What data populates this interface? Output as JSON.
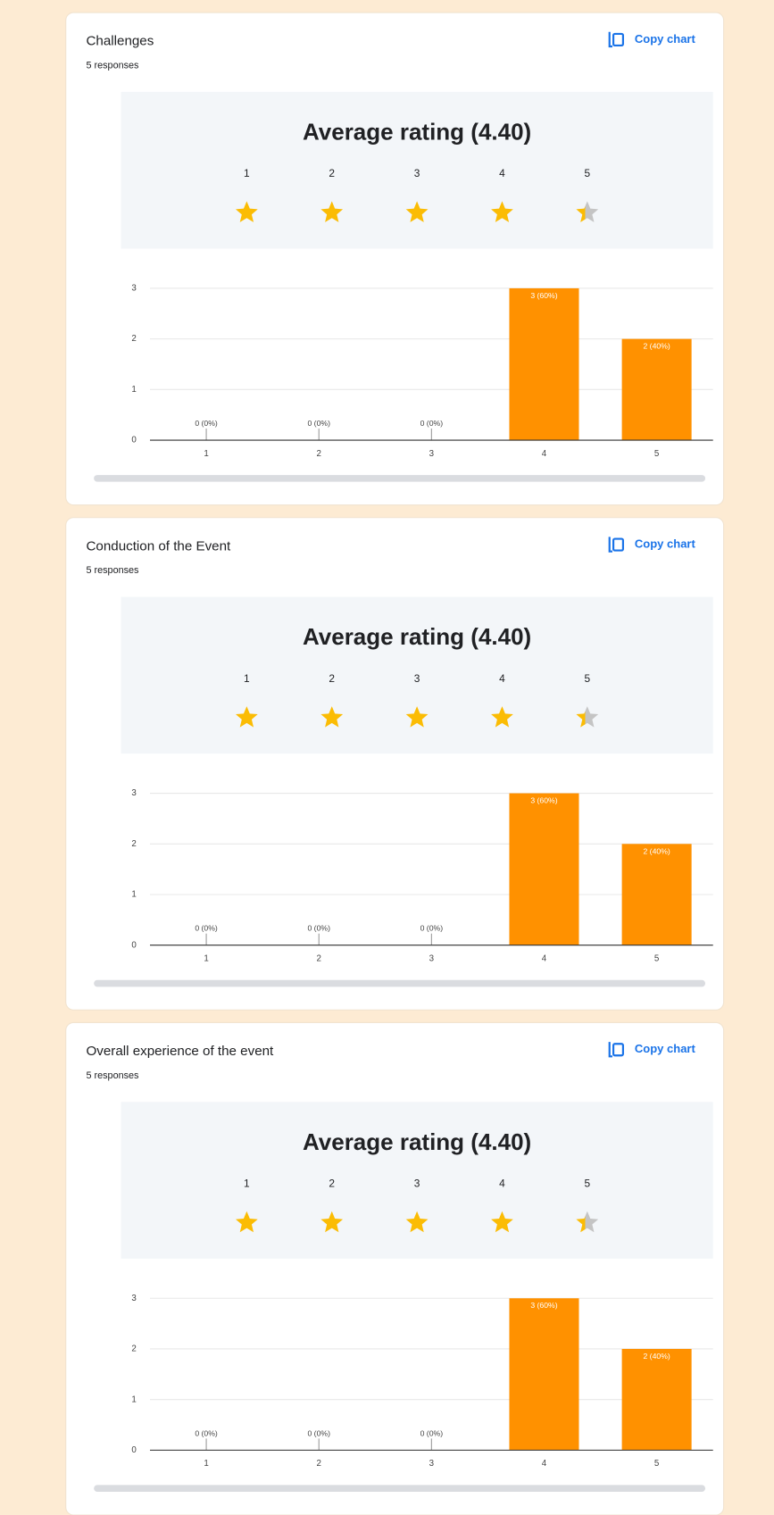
{
  "chart_data": [
    {
      "type": "bar",
      "title": "Challenges",
      "subtitle": "5 responses",
      "button": "Copy chart",
      "rating_title": "Average rating (4.40)",
      "average": 4.4,
      "categories": [
        "1",
        "2",
        "3",
        "4",
        "5"
      ],
      "values": [
        0,
        0,
        0,
        3,
        2
      ],
      "value_labels": [
        "0 (0%)",
        "0 (0%)",
        "0 (0%)",
        "3 (60%)",
        "2 (40%)"
      ],
      "color": "#ff9100",
      "ylim": [
        0,
        3
      ],
      "yticks": [
        0,
        1,
        2,
        3
      ],
      "grid": true
    },
    {
      "type": "bar",
      "title": "Conduction of the Event",
      "subtitle": "5 responses",
      "button": "Copy chart",
      "rating_title": "Average rating (4.40)",
      "average": 4.4,
      "categories": [
        "1",
        "2",
        "3",
        "4",
        "5"
      ],
      "values": [
        0,
        0,
        0,
        3,
        2
      ],
      "value_labels": [
        "0 (0%)",
        "0 (0%)",
        "0 (0%)",
        "3 (60%)",
        "2 (40%)"
      ],
      "color": "#ff9100",
      "ylim": [
        0,
        3
      ],
      "yticks": [
        0,
        1,
        2,
        3
      ],
      "grid": true
    },
    {
      "type": "bar",
      "title": "Overall experience of the event",
      "subtitle": "5 responses",
      "button": "Copy chart",
      "rating_title": "Average rating (4.40)",
      "average": 4.4,
      "categories": [
        "1",
        "2",
        "3",
        "4",
        "5"
      ],
      "values": [
        0,
        0,
        0,
        3,
        2
      ],
      "value_labels": [
        "0 (0%)",
        "0 (0%)",
        "0 (0%)",
        "3 (60%)",
        "2 (40%)"
      ],
      "color": "#ff9100",
      "ylim": [
        0,
        3
      ],
      "yticks": [
        0,
        1,
        2,
        3
      ],
      "grid": true
    }
  ]
}
